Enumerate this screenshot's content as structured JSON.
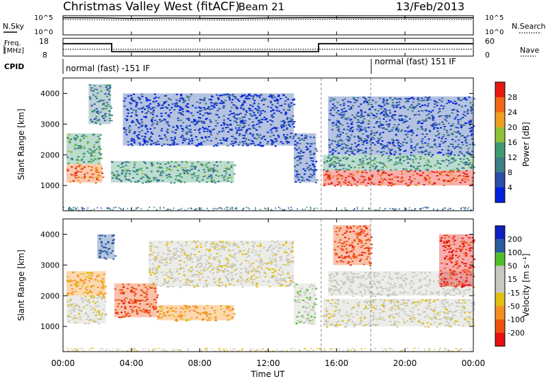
{
  "header": {
    "station": "Christmas Valley West (fitACF)",
    "beam": "Beam 21",
    "date": "13/Feb/2013"
  },
  "noise_panel": {
    "left_label": "N.Sky",
    "right_label": "N.Search",
    "left_ticks": [
      "10^5",
      "10^0"
    ],
    "right_ticks": [
      "10^5",
      "10^0"
    ]
  },
  "freq_panel": {
    "left_label_1": "Freq.",
    "left_label_2": "[MHz]",
    "right_label": "Nave",
    "left_ticks": [
      "18",
      "8"
    ],
    "right_ticks": [
      "60",
      "0"
    ]
  },
  "cpid": {
    "label": "CPID",
    "program_1": "normal (fast) -151 IF",
    "program_2": "normal (fast) 151 IF",
    "change_time": "18:00"
  },
  "power_panel": {
    "ylabel": "Slant Range [km]",
    "yticks": [
      "4000",
      "3000",
      "2000",
      "1000"
    ],
    "colorbar_label": "Power [dB]",
    "colorbar_ticks": [
      "28",
      "24",
      "20",
      "16",
      "12",
      "8",
      "4"
    ]
  },
  "velocity_panel": {
    "ylabel": "Slant Range [km]",
    "yticks": [
      "4000",
      "3000",
      "2000",
      "1000"
    ],
    "colorbar_label": "Velocity [m s⁻¹]",
    "colorbar_ticks": [
      "200",
      "100",
      "50",
      "15",
      "-15",
      "-50",
      "-100",
      "-200"
    ]
  },
  "xaxis": {
    "label": "Time UT",
    "ticks": [
      "00:00",
      "04:00",
      "08:00",
      "12:00",
      "16:00",
      "20:00",
      "00:00"
    ]
  },
  "colors": {
    "power_scale": [
      "#0022dd",
      "#2a4fa8",
      "#3e7e88",
      "#3f9a72",
      "#8fc23a",
      "#f0a020",
      "#f06818",
      "#e81a10"
    ],
    "velocity_scale": [
      "#e81010",
      "#f05010",
      "#f59020",
      "#e0c010",
      "#c8c8c0",
      "#c8c8c0",
      "#50c028",
      "#2a5ca0",
      "#1020c0"
    ]
  },
  "chart_data": [
    {
      "type": "line",
      "title": "",
      "xlabel": "",
      "ylabel": "N.Sky",
      "x_range_hours": [
        0,
        24
      ],
      "series": [
        {
          "name": "N.Sky",
          "x": [
            0,
            2,
            4,
            6,
            8,
            10,
            12,
            14,
            15,
            16,
            18,
            20,
            22,
            24
          ],
          "values": [
            30000,
            28000,
            20000,
            25000,
            22000,
            20000,
            26000,
            30000,
            32000,
            32000,
            30000,
            32000,
            30000,
            30000
          ]
        },
        {
          "name": "N.Search",
          "x": [
            0,
            2,
            4,
            6,
            8,
            10,
            12,
            14,
            16,
            18,
            20,
            22,
            24
          ],
          "values": [
            10000,
            9000,
            7000,
            8000,
            8000,
            7000,
            9000,
            10000,
            11000,
            11000,
            10000,
            10000,
            10000
          ]
        }
      ]
    },
    {
      "type": "line",
      "title": "",
      "xlabel": "",
      "ylabel": "Freq. [MHz]",
      "x_range_hours": [
        0,
        24
      ],
      "series": [
        {
          "name": "Freq.",
          "x": [
            0,
            2.85,
            2.85,
            14.95,
            14.95,
            24
          ],
          "values": [
            15,
            15,
            10.5,
            10.5,
            15,
            15
          ]
        },
        {
          "name": "Nave",
          "x": [
            0,
            24
          ],
          "values": [
            23,
            23
          ]
        }
      ]
    },
    {
      "type": "heatmap",
      "title": "",
      "xlabel": "Time UT",
      "ylabel": "Slant Range [km]",
      "value_label": "Power [dB]",
      "x_range_hours": [
        0,
        24
      ],
      "ylim": [
        180,
        4500
      ],
      "regions": [
        {
          "t0": 0.2,
          "t1": 2.3,
          "r0": 1100,
          "r1": 1700,
          "power": 26
        },
        {
          "t0": 0.2,
          "t1": 2.2,
          "r0": 1700,
          "r1": 2700,
          "power": 14
        },
        {
          "t0": 1.5,
          "t1": 2.8,
          "r0": 3000,
          "r1": 4300,
          "power": 10
        },
        {
          "t0": 2.8,
          "t1": 10.0,
          "r0": 1100,
          "r1": 1800,
          "power": 12
        },
        {
          "t0": 3.5,
          "t1": 13.5,
          "r0": 2300,
          "r1": 4000,
          "power": 4
        },
        {
          "t0": 13.5,
          "t1": 14.8,
          "r0": 1100,
          "r1": 2700,
          "power": 6
        },
        {
          "t0": 15.2,
          "t1": 24.0,
          "r0": 1000,
          "r1": 1500,
          "power": 28
        },
        {
          "t0": 15.2,
          "t1": 24.0,
          "r0": 1500,
          "r1": 2000,
          "power": 12
        },
        {
          "t0": 15.5,
          "t1": 24.0,
          "r0": 2000,
          "r1": 3900,
          "power": 6
        }
      ]
    },
    {
      "type": "heatmap",
      "title": "",
      "xlabel": "Time UT",
      "ylabel": "Slant Range [km]",
      "value_label": "Velocity [m s⁻¹]",
      "x_range_hours": [
        0,
        24
      ],
      "ylim": [
        180,
        4500
      ],
      "regions": [
        {
          "t0": 0.2,
          "t1": 2.5,
          "r0": 1100,
          "r1": 2000,
          "velocity": 0
        },
        {
          "t0": 0.2,
          "t1": 2.5,
          "r0": 2000,
          "r1": 2800,
          "velocity": -60
        },
        {
          "t0": 2.0,
          "t1": 3.0,
          "r0": 3200,
          "r1": 4000,
          "velocity": 150
        },
        {
          "t0": 3.0,
          "t1": 5.5,
          "r0": 1300,
          "r1": 2400,
          "velocity": -180
        },
        {
          "t0": 5.5,
          "t1": 10.0,
          "r0": 1200,
          "r1": 1700,
          "velocity": -70
        },
        {
          "t0": 5.0,
          "t1": 13.5,
          "r0": 2300,
          "r1": 3800,
          "velocity": 0
        },
        {
          "t0": 13.5,
          "t1": 14.8,
          "r0": 1100,
          "r1": 2400,
          "velocity": 40
        },
        {
          "t0": 15.2,
          "t1": 24.0,
          "r0": 1000,
          "r1": 1900,
          "velocity": 0
        },
        {
          "t0": 15.5,
          "t1": 24.0,
          "r0": 2000,
          "r1": 2800,
          "velocity": 20
        },
        {
          "t0": 15.8,
          "t1": 18.0,
          "r0": 3000,
          "r1": 4300,
          "velocity": -180
        },
        {
          "t0": 22.0,
          "t1": 24.0,
          "r0": 2300,
          "r1": 4000,
          "velocity": -200
        }
      ]
    }
  ]
}
